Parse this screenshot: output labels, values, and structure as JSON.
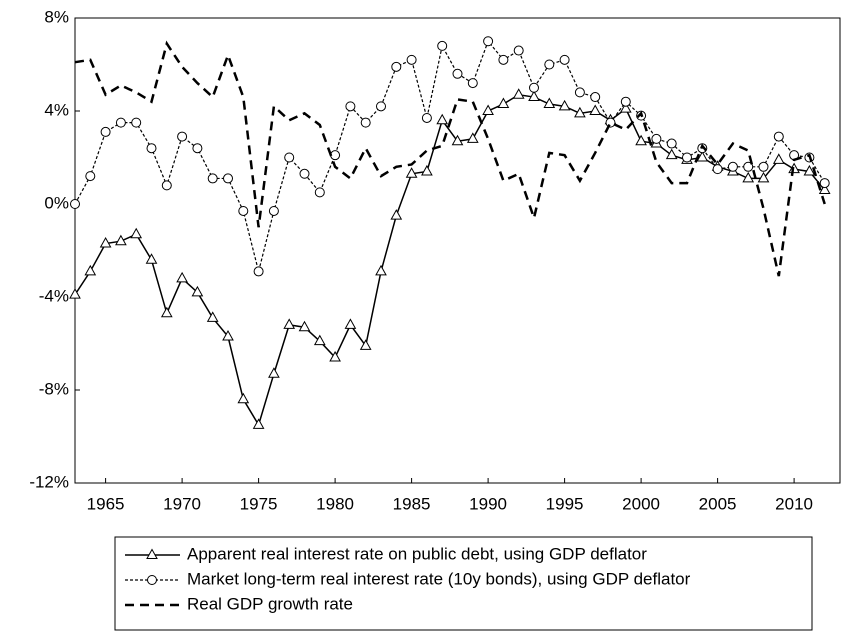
{
  "chart_data": {
    "type": "line",
    "x": [
      1963,
      1964,
      1965,
      1966,
      1967,
      1968,
      1969,
      1970,
      1971,
      1972,
      1973,
      1974,
      1975,
      1976,
      1977,
      1978,
      1979,
      1980,
      1981,
      1982,
      1983,
      1984,
      1985,
      1986,
      1987,
      1988,
      1989,
      1990,
      1991,
      1992,
      1993,
      1994,
      1995,
      1996,
      1997,
      1998,
      1999,
      2000,
      2001,
      2002,
      2003,
      2004,
      2005,
      2006,
      2007,
      2008,
      2009,
      2010,
      2011,
      2012
    ],
    "series": [
      {
        "name": "Apparent real interest rate on public debt, using GDP deflator",
        "color": "#000000",
        "dash": "solid",
        "marker": "triangle",
        "values": [
          -3.9,
          -2.9,
          -1.7,
          -1.6,
          -1.3,
          -2.4,
          -4.7,
          -3.2,
          -3.8,
          -4.9,
          -5.7,
          -8.4,
          -9.5,
          -7.3,
          -5.2,
          -5.3,
          -5.9,
          -6.6,
          -5.2,
          -6.1,
          -2.9,
          -0.5,
          1.3,
          1.4,
          3.6,
          2.7,
          2.8,
          4.0,
          4.3,
          4.7,
          4.6,
          4.3,
          4.2,
          3.9,
          4.0,
          3.6,
          4.1,
          2.7,
          2.6,
          2.1,
          1.9,
          2.0,
          1.6,
          1.4,
          1.1,
          1.1,
          1.9,
          1.5,
          1.4,
          0.6
        ]
      },
      {
        "name": "Market long-term real interest rate (10y bonds), using GDP deflator",
        "color": "#000000",
        "dash": "dotted",
        "marker": "circle",
        "values": [
          0.0,
          1.2,
          3.1,
          3.5,
          3.5,
          2.4,
          0.8,
          2.9,
          2.4,
          1.1,
          1.1,
          -0.3,
          -2.9,
          -0.3,
          2.0,
          1.3,
          0.5,
          2.1,
          4.2,
          3.5,
          4.2,
          5.9,
          6.2,
          3.7,
          6.8,
          5.6,
          5.2,
          7.0,
          6.2,
          6.6,
          5.0,
          6.0,
          6.2,
          4.8,
          4.6,
          3.5,
          4.4,
          3.8,
          2.8,
          2.6,
          2.0,
          2.4,
          1.5,
          1.6,
          1.6,
          1.6,
          2.9,
          2.1,
          2.0,
          0.9
        ]
      },
      {
        "name": "Real GDP growth rate",
        "color": "#000000",
        "dash": "dashed",
        "marker": "none",
        "values": [
          6.1,
          6.2,
          4.7,
          5.1,
          4.8,
          4.4,
          6.9,
          5.9,
          5.2,
          4.6,
          6.4,
          4.6,
          -1.0,
          4.2,
          3.6,
          3.9,
          3.4,
          1.6,
          1.1,
          2.4,
          1.2,
          1.6,
          1.7,
          2.3,
          2.5,
          4.5,
          4.4,
          2.8,
          1.0,
          1.3,
          -0.6,
          2.2,
          2.1,
          1.0,
          2.2,
          3.5,
          3.2,
          3.9,
          1.8,
          0.9,
          0.9,
          2.5,
          1.7,
          2.6,
          2.3,
          -0.2,
          -3.1,
          1.9,
          2.1,
          0.0
        ]
      }
    ],
    "xlim": [
      1963,
      2013
    ],
    "ylim": [
      -12,
      8
    ],
    "xticks": [
      1965,
      1970,
      1975,
      1980,
      1985,
      1990,
      1995,
      2000,
      2005,
      2010
    ],
    "yticks": [
      {
        "value": -12,
        "label": "-12%"
      },
      {
        "value": -8,
        "label": "-8%"
      },
      {
        "value": -4,
        "label": "-4%"
      },
      {
        "value": 0,
        "label": "0%"
      },
      {
        "value": 4,
        "label": "4%"
      },
      {
        "value": 8,
        "label": "8%"
      }
    ],
    "grid": false,
    "legend": "bottom"
  }
}
